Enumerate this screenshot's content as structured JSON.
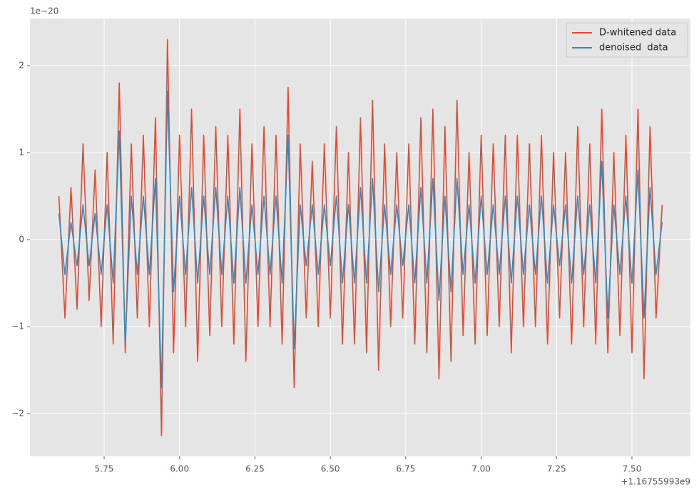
{
  "chart_data": {
    "type": "line",
    "x_offset_label": "+1.16755993e9",
    "y_scale_label": "1e−20",
    "x": [
      5.6,
      5.62,
      5.64,
      5.66,
      5.68,
      5.7,
      5.72,
      5.74,
      5.76,
      5.78,
      5.8,
      5.82,
      5.84,
      5.86,
      5.88,
      5.9,
      5.92,
      5.94,
      5.96,
      5.98,
      6.0,
      6.02,
      6.04,
      6.06,
      6.08,
      6.1,
      6.12,
      6.14,
      6.16,
      6.18,
      6.2,
      6.22,
      6.24,
      6.26,
      6.28,
      6.3,
      6.32,
      6.34,
      6.36,
      6.38,
      6.4,
      6.42,
      6.44,
      6.46,
      6.48,
      6.5,
      6.52,
      6.54,
      6.56,
      6.58,
      6.6,
      6.62,
      6.64,
      6.66,
      6.68,
      6.7,
      6.72,
      6.74,
      6.76,
      6.78,
      6.8,
      6.82,
      6.84,
      6.86,
      6.88,
      6.9,
      6.92,
      6.94,
      6.96,
      6.98,
      7.0,
      7.02,
      7.04,
      7.06,
      7.08,
      7.1,
      7.12,
      7.14,
      7.16,
      7.18,
      7.2,
      7.22,
      7.24,
      7.26,
      7.28,
      7.3,
      7.32,
      7.34,
      7.36,
      7.38,
      7.4,
      7.42,
      7.44,
      7.46,
      7.48,
      7.5,
      7.52,
      7.54,
      7.56,
      7.58,
      7.6
    ],
    "series": [
      {
        "name": "D-whitened data",
        "color": "#E24A33",
        "values": [
          0.5,
          -0.9,
          0.6,
          -0.8,
          1.1,
          -0.7,
          0.8,
          -1.0,
          1.0,
          -1.2,
          1.8,
          -1.3,
          1.1,
          -0.9,
          1.2,
          -1.0,
          1.4,
          -2.25,
          2.3,
          -1.3,
          1.2,
          -1.0,
          1.5,
          -1.4,
          1.2,
          -1.1,
          1.3,
          -1.0,
          1.2,
          -1.2,
          1.5,
          -1.4,
          1.1,
          -1.0,
          1.3,
          -1.0,
          1.2,
          -1.2,
          1.75,
          -1.7,
          1.1,
          -0.9,
          0.9,
          -1.0,
          1.1,
          -0.9,
          1.3,
          -1.2,
          1.0,
          -1.2,
          1.4,
          -1.3,
          1.6,
          -1.5,
          1.1,
          -1.0,
          1.0,
          -0.9,
          1.1,
          -1.2,
          1.4,
          -1.3,
          1.5,
          -1.6,
          1.3,
          -1.4,
          1.6,
          -1.1,
          1.0,
          -1.2,
          1.2,
          -1.1,
          1.1,
          -1.0,
          1.2,
          -1.3,
          1.2,
          -1.0,
          1.1,
          -1.0,
          1.2,
          -1.2,
          1.0,
          -0.9,
          1.0,
          -1.2,
          1.3,
          -1.0,
          1.1,
          -1.2,
          1.5,
          -1.3,
          1.0,
          -1.1,
          1.2,
          -1.3,
          1.5,
          -1.6,
          1.3,
          -0.9,
          0.4
        ]
      },
      {
        "name": "denoised  data",
        "color": "#348ABD",
        "values": [
          0.3,
          -0.4,
          0.2,
          -0.3,
          0.4,
          -0.3,
          0.3,
          -0.4,
          0.4,
          -0.5,
          1.25,
          -1.2,
          0.5,
          -0.4,
          0.5,
          -0.4,
          0.7,
          -1.7,
          1.7,
          -0.6,
          0.5,
          -0.4,
          0.6,
          -0.5,
          0.5,
          -0.4,
          0.6,
          -0.4,
          0.5,
          -0.5,
          0.6,
          -0.5,
          0.4,
          -0.4,
          0.5,
          -0.4,
          0.5,
          -0.5,
          1.2,
          -1.25,
          0.4,
          -0.3,
          0.4,
          -0.4,
          0.4,
          -0.3,
          0.5,
          -0.5,
          0.4,
          -0.5,
          0.6,
          -0.5,
          0.7,
          -0.6,
          0.4,
          -0.4,
          0.4,
          -0.3,
          0.4,
          -0.5,
          0.6,
          -0.5,
          0.7,
          -0.7,
          0.5,
          -0.6,
          0.7,
          -0.4,
          0.4,
          -0.5,
          0.5,
          -0.4,
          0.4,
          -0.4,
          0.5,
          -0.5,
          0.5,
          -0.4,
          0.4,
          -0.4,
          0.5,
          -0.5,
          0.4,
          -0.3,
          0.4,
          -0.5,
          0.5,
          -0.4,
          0.4,
          -0.5,
          0.9,
          -0.9,
          0.4,
          -0.4,
          0.5,
          -0.5,
          0.8,
          -0.9,
          0.6,
          -0.4,
          0.2
        ]
      }
    ],
    "xlim": [
      5.504,
      7.694
    ],
    "ylim": [
      -2.49,
      2.54
    ],
    "xticks": [
      5.75,
      {
        "value": 6,
        "label": "6.00"
      },
      6.25,
      {
        "value": 6.5,
        "label": "6.50"
      },
      6.75,
      {
        "value": 7,
        "label": "7.00"
      },
      7.25,
      {
        "value": 7.5,
        "label": "7.50"
      }
    ],
    "yticks": [
      {
        "value": -2,
        "label": "−2"
      },
      {
        "value": -1,
        "label": "−1"
      },
      0,
      1,
      2
    ],
    "grid": true,
    "legend": "upper right"
  }
}
